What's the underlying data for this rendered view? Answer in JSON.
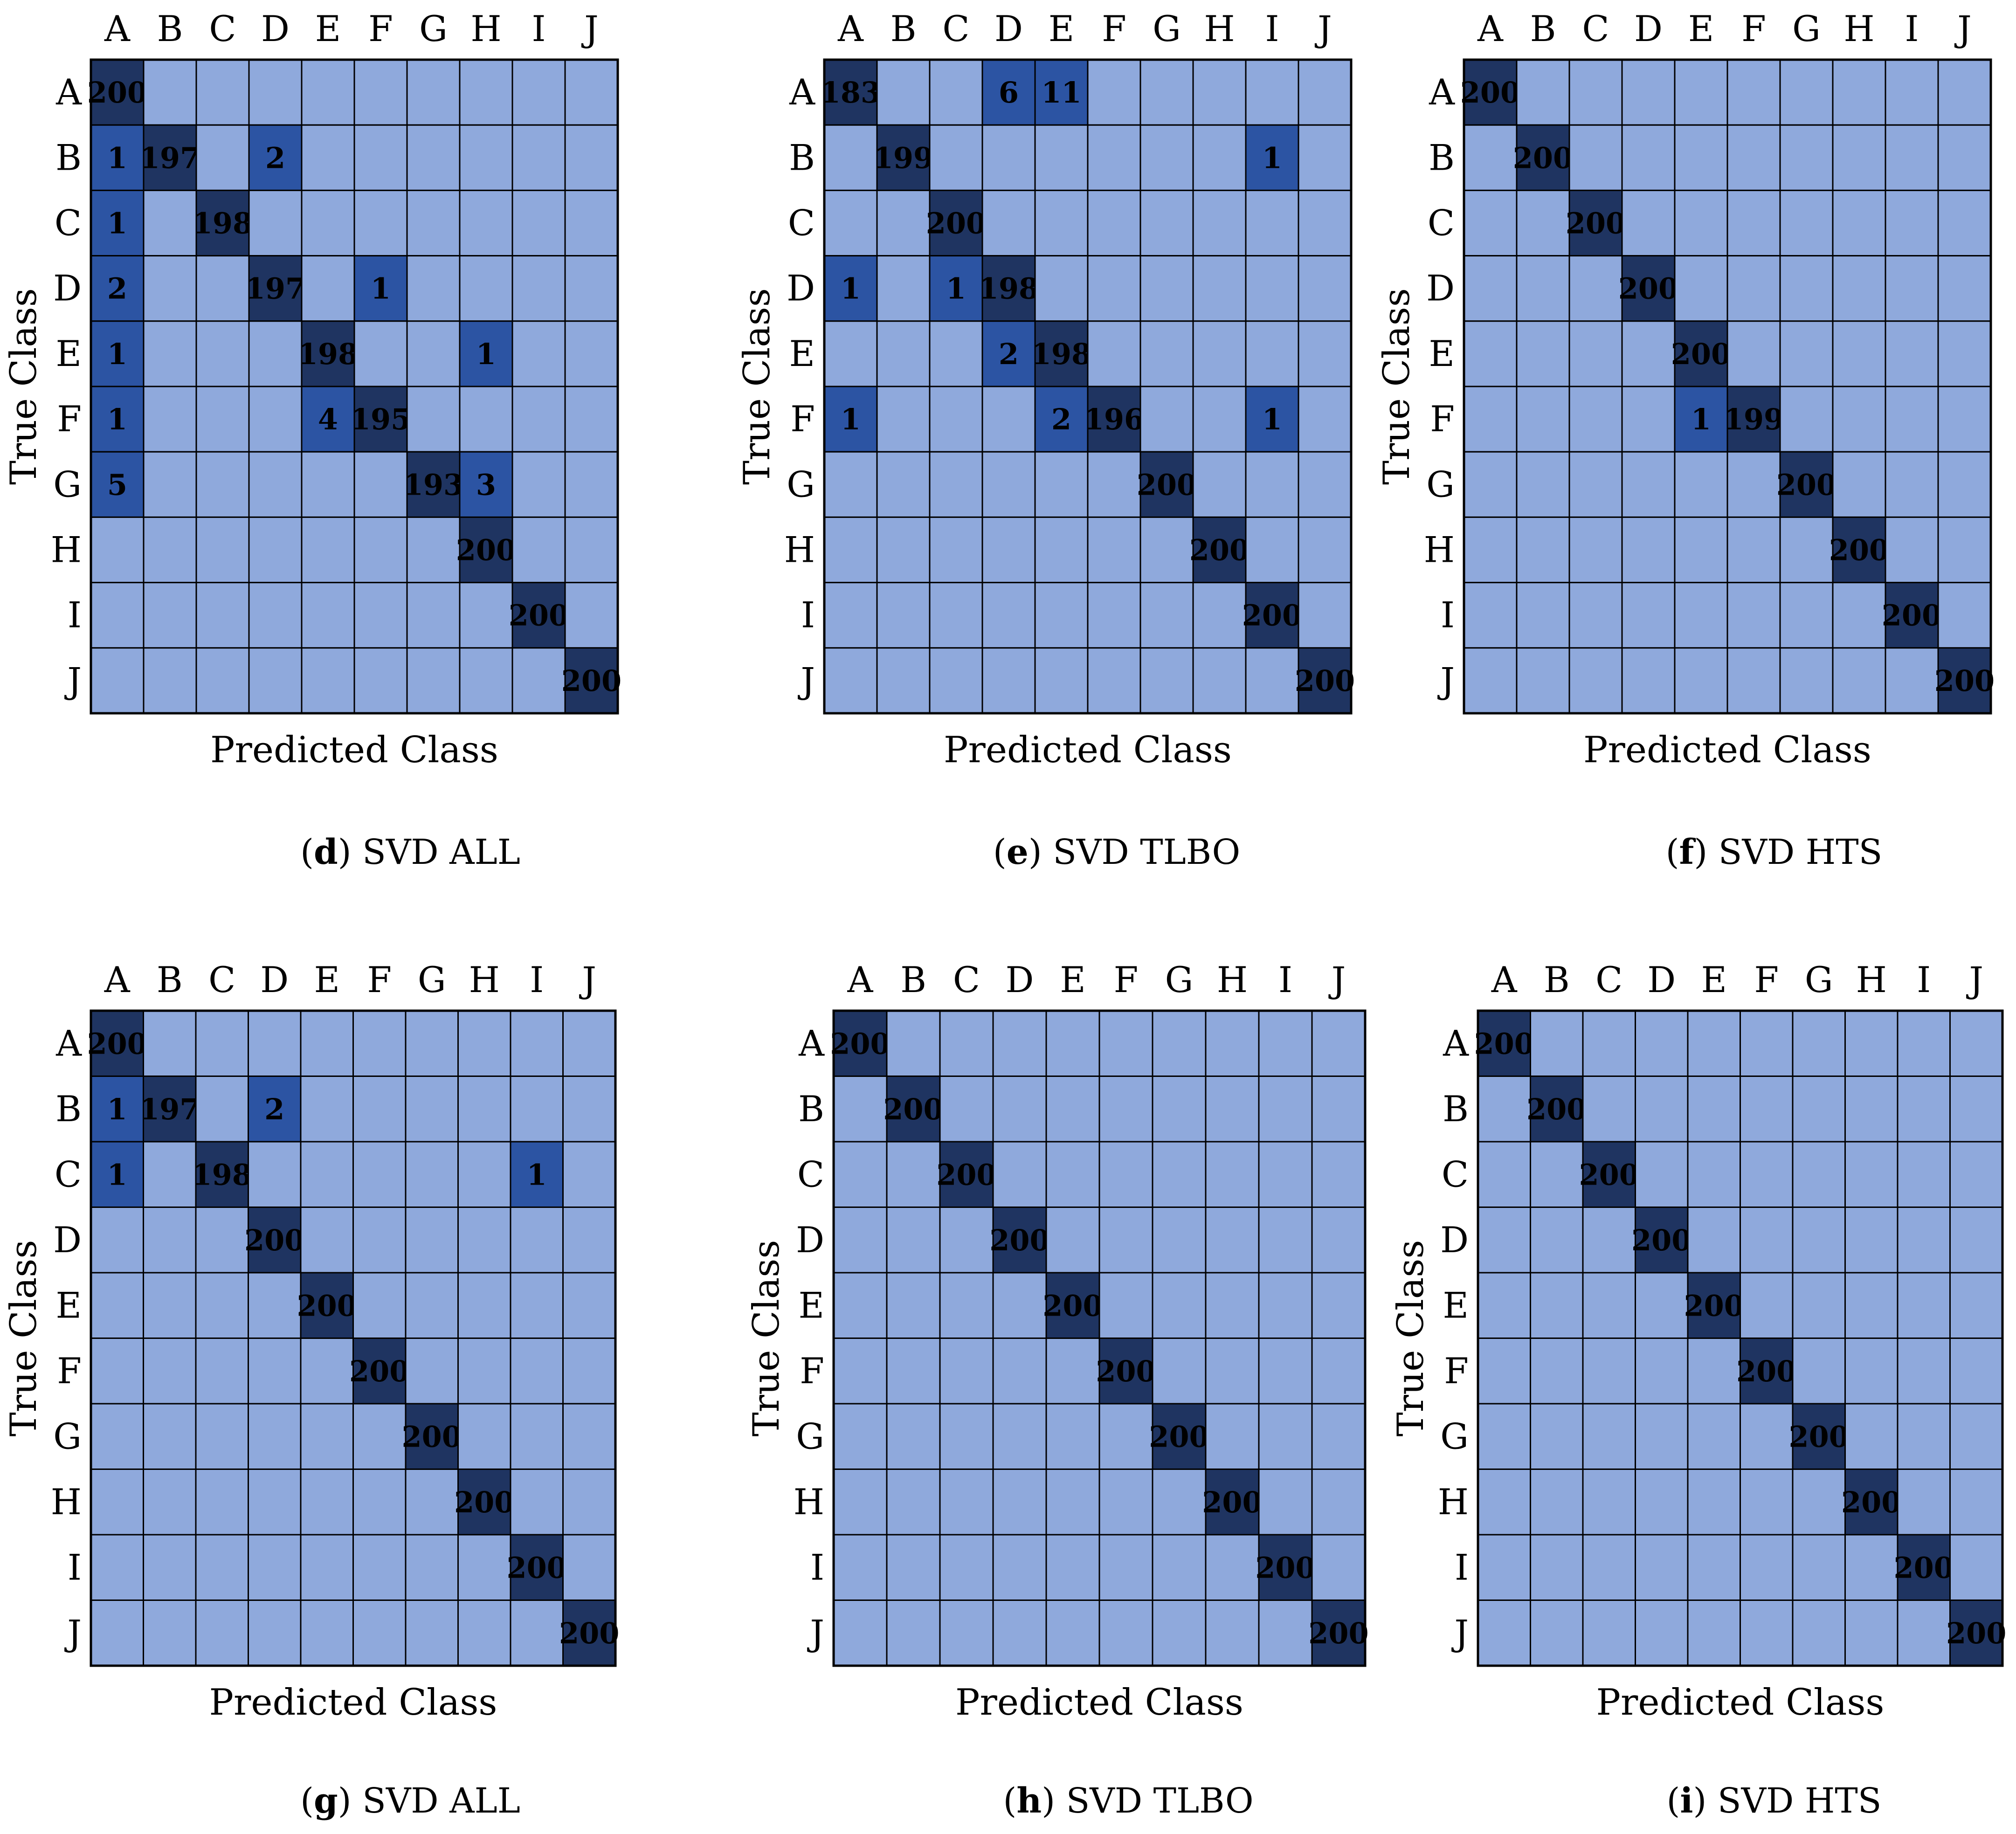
{
  "categories": [
    "A",
    "B",
    "C",
    "D",
    "E",
    "F",
    "G",
    "H",
    "I",
    "J"
  ],
  "colors": {
    "background": "#ffffff",
    "zero_cell": "#8FA9DC",
    "mid_cell": "#2C54A3",
    "diag_cell": "#1F3461",
    "grid": "#000000",
    "light_value_text": "#ffffff",
    "dark_value_text": "#111111"
  },
  "chart_data": [
    {
      "type": "heatmap",
      "label": "d",
      "caption": "SVD ALL",
      "xlabel": "Predicted Class",
      "ylabel": "True Class",
      "value_text": "light",
      "categories": [
        "A",
        "B",
        "C",
        "D",
        "E",
        "F",
        "G",
        "H",
        "I",
        "J"
      ],
      "values": [
        [
          200,
          0,
          0,
          0,
          0,
          0,
          0,
          0,
          0,
          0
        ],
        [
          1,
          197,
          0,
          2,
          0,
          0,
          0,
          0,
          0,
          0
        ],
        [
          1,
          0,
          198,
          0,
          0,
          0,
          0,
          0,
          0,
          0
        ],
        [
          2,
          0,
          0,
          197,
          0,
          1,
          0,
          0,
          0,
          0
        ],
        [
          1,
          0,
          0,
          0,
          198,
          0,
          0,
          1,
          0,
          0
        ],
        [
          1,
          0,
          0,
          0,
          4,
          195,
          0,
          0,
          0,
          0
        ],
        [
          5,
          0,
          0,
          0,
          0,
          0,
          193,
          3,
          0,
          0
        ],
        [
          0,
          0,
          0,
          0,
          0,
          0,
          0,
          200,
          0,
          0
        ],
        [
          0,
          0,
          0,
          0,
          0,
          0,
          0,
          0,
          200,
          0
        ],
        [
          0,
          0,
          0,
          0,
          0,
          0,
          0,
          0,
          0,
          200
        ]
      ]
    },
    {
      "type": "heatmap",
      "label": "e",
      "caption": "SVD TLBO",
      "xlabel": "Predicted Class",
      "ylabel": "True Class",
      "value_text": "light",
      "categories": [
        "A",
        "B",
        "C",
        "D",
        "E",
        "F",
        "G",
        "H",
        "I",
        "J"
      ],
      "values": [
        [
          183,
          0,
          0,
          6,
          11,
          0,
          0,
          0,
          0,
          0
        ],
        [
          0,
          199,
          0,
          0,
          0,
          0,
          0,
          0,
          1,
          0
        ],
        [
          0,
          0,
          200,
          0,
          0,
          0,
          0,
          0,
          0,
          0
        ],
        [
          1,
          0,
          1,
          198,
          0,
          0,
          0,
          0,
          0,
          0
        ],
        [
          0,
          0,
          0,
          2,
          198,
          0,
          0,
          0,
          0,
          0
        ],
        [
          1,
          0,
          0,
          0,
          2,
          196,
          0,
          0,
          1,
          0
        ],
        [
          0,
          0,
          0,
          0,
          0,
          0,
          200,
          0,
          0,
          0
        ],
        [
          0,
          0,
          0,
          0,
          0,
          0,
          0,
          200,
          0,
          0
        ],
        [
          0,
          0,
          0,
          0,
          0,
          0,
          0,
          0,
          200,
          0
        ],
        [
          0,
          0,
          0,
          0,
          0,
          0,
          0,
          0,
          0,
          200
        ]
      ]
    },
    {
      "type": "heatmap",
      "label": "f",
      "caption": "SVD HTS",
      "xlabel": "Predicted Class",
      "ylabel": "True Class",
      "value_text": "light",
      "categories": [
        "A",
        "B",
        "C",
        "D",
        "E",
        "F",
        "G",
        "H",
        "I",
        "J"
      ],
      "values": [
        [
          200,
          0,
          0,
          0,
          0,
          0,
          0,
          0,
          0,
          0
        ],
        [
          0,
          200,
          0,
          0,
          0,
          0,
          0,
          0,
          0,
          0
        ],
        [
          0,
          0,
          200,
          0,
          0,
          0,
          0,
          0,
          0,
          0
        ],
        [
          0,
          0,
          0,
          200,
          0,
          0,
          0,
          0,
          0,
          0
        ],
        [
          0,
          0,
          0,
          0,
          200,
          0,
          0,
          0,
          0,
          0
        ],
        [
          0,
          0,
          0,
          0,
          1,
          199,
          0,
          0,
          0,
          0
        ],
        [
          0,
          0,
          0,
          0,
          0,
          0,
          200,
          0,
          0,
          0
        ],
        [
          0,
          0,
          0,
          0,
          0,
          0,
          0,
          200,
          0,
          0
        ],
        [
          0,
          0,
          0,
          0,
          0,
          0,
          0,
          0,
          200,
          0
        ],
        [
          0,
          0,
          0,
          0,
          0,
          0,
          0,
          0,
          0,
          200
        ]
      ]
    },
    {
      "type": "heatmap",
      "label": "g",
      "caption": "SVD ALL",
      "xlabel": "Predicted Class",
      "ylabel": "True Class",
      "value_text": "dark",
      "categories": [
        "A",
        "B",
        "C",
        "D",
        "E",
        "F",
        "G",
        "H",
        "I",
        "J"
      ],
      "values": [
        [
          200,
          0,
          0,
          0,
          0,
          0,
          0,
          0,
          0,
          0
        ],
        [
          1,
          197,
          0,
          2,
          0,
          0,
          0,
          0,
          0,
          0
        ],
        [
          1,
          0,
          198,
          0,
          0,
          0,
          0,
          0,
          1,
          0
        ],
        [
          0,
          0,
          0,
          200,
          0,
          0,
          0,
          0,
          0,
          0
        ],
        [
          0,
          0,
          0,
          0,
          200,
          0,
          0,
          0,
          0,
          0
        ],
        [
          0,
          0,
          0,
          0,
          0,
          200,
          0,
          0,
          0,
          0
        ],
        [
          0,
          0,
          0,
          0,
          0,
          0,
          200,
          0,
          0,
          0
        ],
        [
          0,
          0,
          0,
          0,
          0,
          0,
          0,
          200,
          0,
          0
        ],
        [
          0,
          0,
          0,
          0,
          0,
          0,
          0,
          0,
          200,
          0
        ],
        [
          0,
          0,
          0,
          0,
          0,
          0,
          0,
          0,
          0,
          200
        ]
      ]
    },
    {
      "type": "heatmap",
      "label": "h",
      "caption": "SVD TLBO",
      "xlabel": "Predicted Class",
      "ylabel": "True Class",
      "value_text": "dark",
      "categories": [
        "A",
        "B",
        "C",
        "D",
        "E",
        "F",
        "G",
        "H",
        "I",
        "J"
      ],
      "values": [
        [
          200,
          0,
          0,
          0,
          0,
          0,
          0,
          0,
          0,
          0
        ],
        [
          0,
          200,
          0,
          0,
          0,
          0,
          0,
          0,
          0,
          0
        ],
        [
          0,
          0,
          200,
          0,
          0,
          0,
          0,
          0,
          0,
          0
        ],
        [
          0,
          0,
          0,
          200,
          0,
          0,
          0,
          0,
          0,
          0
        ],
        [
          0,
          0,
          0,
          0,
          200,
          0,
          0,
          0,
          0,
          0
        ],
        [
          0,
          0,
          0,
          0,
          0,
          200,
          0,
          0,
          0,
          0
        ],
        [
          0,
          0,
          0,
          0,
          0,
          0,
          200,
          0,
          0,
          0
        ],
        [
          0,
          0,
          0,
          0,
          0,
          0,
          0,
          200,
          0,
          0
        ],
        [
          0,
          0,
          0,
          0,
          0,
          0,
          0,
          0,
          200,
          0
        ],
        [
          0,
          0,
          0,
          0,
          0,
          0,
          0,
          0,
          0,
          200
        ]
      ]
    },
    {
      "type": "heatmap",
      "label": "i",
      "caption": "SVD HTS",
      "xlabel": "Predicted Class",
      "ylabel": "True Class",
      "value_text": "dark",
      "categories": [
        "A",
        "B",
        "C",
        "D",
        "E",
        "F",
        "G",
        "H",
        "I",
        "J"
      ],
      "values": [
        [
          200,
          0,
          0,
          0,
          0,
          0,
          0,
          0,
          0,
          0
        ],
        [
          0,
          200,
          0,
          0,
          0,
          0,
          0,
          0,
          0,
          0
        ],
        [
          0,
          0,
          200,
          0,
          0,
          0,
          0,
          0,
          0,
          0
        ],
        [
          0,
          0,
          0,
          200,
          0,
          0,
          0,
          0,
          0,
          0
        ],
        [
          0,
          0,
          0,
          0,
          200,
          0,
          0,
          0,
          0,
          0
        ],
        [
          0,
          0,
          0,
          0,
          0,
          200,
          0,
          0,
          0,
          0
        ],
        [
          0,
          0,
          0,
          0,
          0,
          0,
          200,
          0,
          0,
          0
        ],
        [
          0,
          0,
          0,
          0,
          0,
          0,
          0,
          200,
          0,
          0
        ],
        [
          0,
          0,
          0,
          0,
          0,
          0,
          0,
          0,
          200,
          0
        ],
        [
          0,
          0,
          0,
          0,
          0,
          0,
          0,
          0,
          0,
          200
        ]
      ]
    }
  ]
}
